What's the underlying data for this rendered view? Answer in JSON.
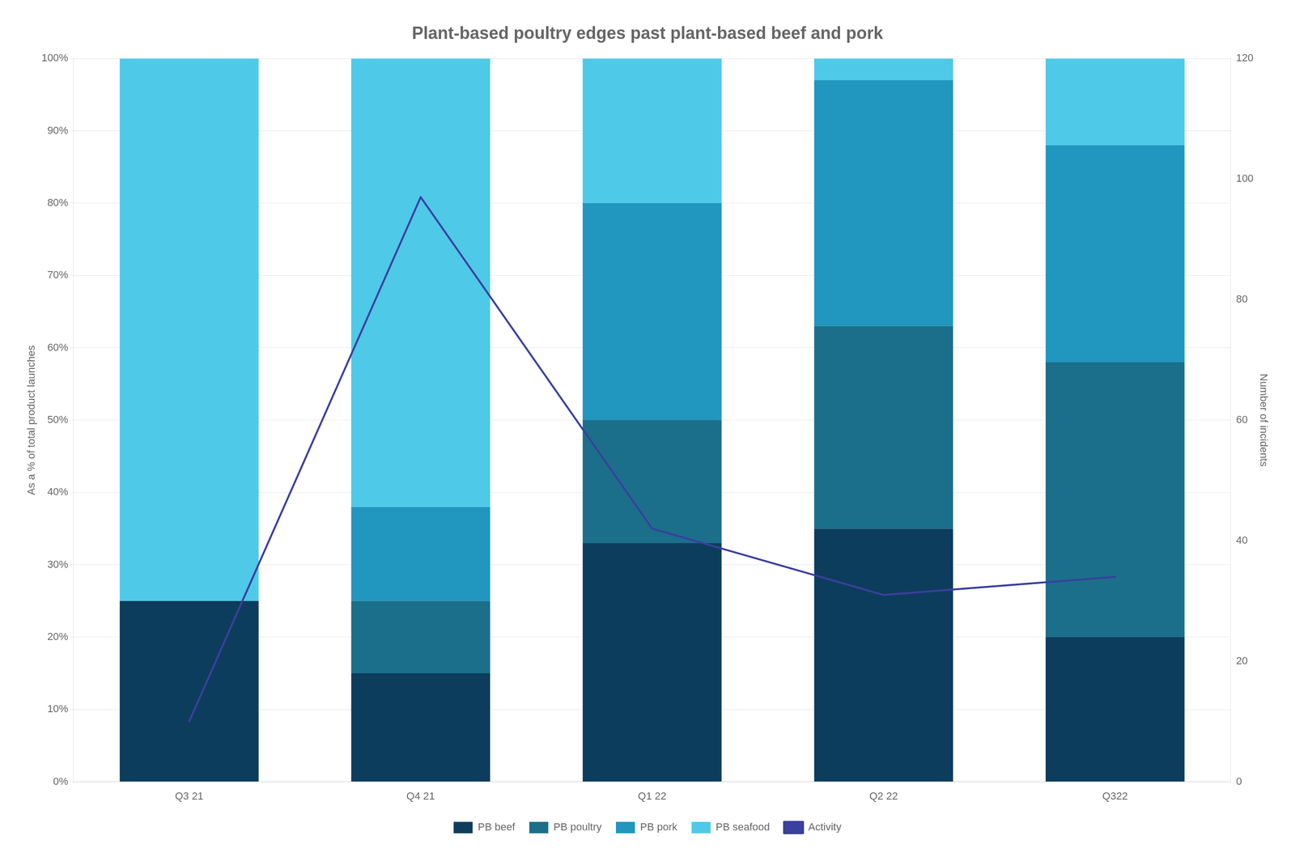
{
  "chart_data": {
    "type": "bar",
    "title": "Plant-based poultry edges past plant-based beef and pork",
    "categories": [
      "Q3 21",
      "Q4 21",
      "Q1 22",
      "Q2 22",
      "Q322"
    ],
    "stacked": true,
    "series": [
      {
        "name": "PB beef",
        "color": "#0d3d5c",
        "values": [
          25,
          15,
          33,
          35,
          20
        ]
      },
      {
        "name": "PB poultry",
        "color": "#1b6f8a",
        "values": [
          0,
          10,
          17,
          28,
          38
        ]
      },
      {
        "name": "PB pork",
        "color": "#2196be",
        "values": [
          0,
          13,
          30,
          34,
          30
        ]
      },
      {
        "name": "PB seafood",
        "color": "#4ec9e8",
        "values": [
          75,
          62,
          20,
          3,
          12
        ]
      },
      {
        "name": "Activity",
        "type": "line",
        "color": "#3b3f9e",
        "axis": "y2",
        "values": [
          10,
          97,
          42,
          31,
          34
        ]
      }
    ],
    "ylabel": "As a % of total product launches",
    "y2label": "Number of incidents",
    "ylim": [
      0,
      100
    ],
    "yticks": [
      {
        "value": 0,
        "label": "0%"
      },
      {
        "value": 10,
        "label": "10%"
      },
      {
        "value": 20,
        "label": "20%"
      },
      {
        "value": 30,
        "label": "30%"
      },
      {
        "value": 40,
        "label": "40%"
      },
      {
        "value": 50,
        "label": "50%"
      },
      {
        "value": 60,
        "label": "60%"
      },
      {
        "value": 70,
        "label": "70%"
      },
      {
        "value": 80,
        "label": "80%"
      },
      {
        "value": 90,
        "label": "90%"
      },
      {
        "value": 100,
        "label": "100%"
      }
    ],
    "y2lim": [
      0,
      120
    ],
    "y2ticks": [
      0,
      20,
      40,
      60,
      80,
      100,
      120
    ],
    "grid": true,
    "legend": "bottom"
  }
}
